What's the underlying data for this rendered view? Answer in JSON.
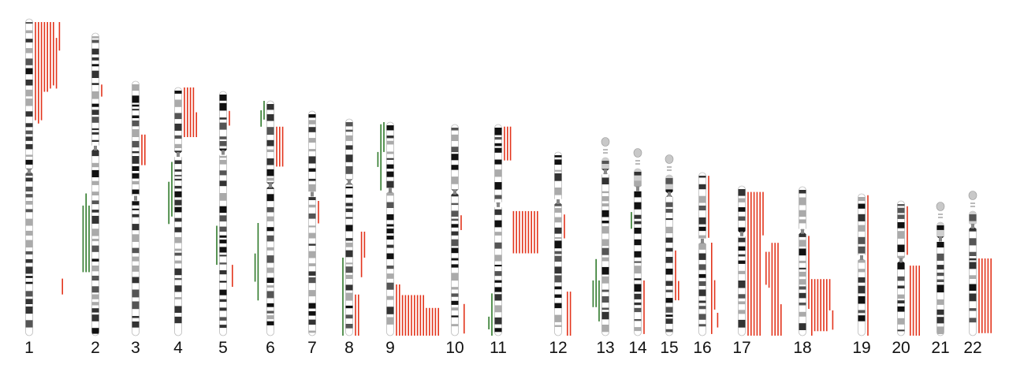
{
  "colors": {
    "gain": "#e3341c",
    "loss": "#2f7a2a",
    "band_dark": "#111111",
    "band_mid": "#555555",
    "band_light": "#aaaaaa"
  },
  "legend_note": "",
  "chromosomes": [
    {
      "label": "1",
      "segments": [
        {
          "type": "gain",
          "start": 0.01,
          "end": 0.32
        },
        {
          "type": "gain",
          "start": 0.01,
          "end": 0.33
        },
        {
          "type": "gain",
          "start": 0.01,
          "end": 0.32
        },
        {
          "type": "gain",
          "start": 0.01,
          "end": 0.23
        },
        {
          "type": "gain",
          "start": 0.01,
          "end": 0.23
        },
        {
          "type": "gain",
          "start": 0.01,
          "end": 0.22
        },
        {
          "type": "gain",
          "start": 0.01,
          "end": 0.21
        },
        {
          "type": "gain",
          "start": 0.06,
          "end": 0.22
        },
        {
          "type": "gain",
          "start": 0.01,
          "end": 0.1
        },
        {
          "type": "gain",
          "start": 0.82,
          "end": 0.87
        }
      ]
    },
    {
      "label": "2",
      "segments": [
        {
          "type": "gain",
          "start": 0.17,
          "end": 0.21
        },
        {
          "type": "loss",
          "start": 0.57,
          "end": 0.79
        },
        {
          "type": "loss",
          "start": 0.53,
          "end": 0.79
        },
        {
          "type": "loss",
          "start": 0.57,
          "end": 0.79
        }
      ]
    },
    {
      "label": "3",
      "segments": [
        {
          "type": "gain",
          "start": 0.21,
          "end": 0.33
        },
        {
          "type": "gain",
          "start": 0.21,
          "end": 0.33
        }
      ]
    },
    {
      "label": "4",
      "segments": [
        {
          "type": "gain",
          "start": 0.0,
          "end": 0.2
        },
        {
          "type": "gain",
          "start": 0.0,
          "end": 0.2
        },
        {
          "type": "gain",
          "start": 0.0,
          "end": 0.2
        },
        {
          "type": "gain",
          "start": 0.0,
          "end": 0.2
        },
        {
          "type": "gain",
          "start": 0.1,
          "end": 0.2
        },
        {
          "type": "loss",
          "start": 0.3,
          "end": 0.52
        },
        {
          "type": "loss",
          "start": 0.38,
          "end": 0.55
        }
      ]
    },
    {
      "label": "5",
      "segments": [
        {
          "type": "gain",
          "start": 0.08,
          "end": 0.14
        },
        {
          "type": "gain",
          "start": 0.71,
          "end": 0.8
        },
        {
          "type": "loss",
          "start": 0.55,
          "end": 0.71
        }
      ]
    },
    {
      "label": "6",
      "segments": [
        {
          "type": "loss",
          "start": 0.0,
          "end": 0.08
        },
        {
          "type": "loss",
          "start": 0.04,
          "end": 0.11
        },
        {
          "type": "gain",
          "start": 0.11,
          "end": 0.28
        },
        {
          "type": "gain",
          "start": 0.11,
          "end": 0.28
        },
        {
          "type": "gain",
          "start": 0.11,
          "end": 0.28
        },
        {
          "type": "loss",
          "start": 0.52,
          "end": 0.85
        },
        {
          "type": "loss",
          "start": 0.65,
          "end": 0.77
        }
      ]
    },
    {
      "label": "7",
      "segments": [
        {
          "type": "gain",
          "start": 0.4,
          "end": 0.5
        }
      ]
    },
    {
      "label": "8",
      "segments": [
        {
          "type": "gain",
          "start": 0.81,
          "end": 1.0
        },
        {
          "type": "gain",
          "start": 0.81,
          "end": 1.0
        },
        {
          "type": "gain",
          "start": 0.52,
          "end": 0.73
        },
        {
          "type": "gain",
          "start": 0.52,
          "end": 0.64
        },
        {
          "type": "loss",
          "start": 0.64,
          "end": 1.0
        }
      ]
    },
    {
      "label": "9",
      "segments": [
        {
          "type": "loss",
          "start": 0.0,
          "end": 0.14
        },
        {
          "type": "loss",
          "start": 0.01,
          "end": 0.32
        },
        {
          "type": "loss",
          "start": 0.14,
          "end": 0.21
        },
        {
          "type": "gain",
          "start": 0.76,
          "end": 1.0
        },
        {
          "type": "gain",
          "start": 0.76,
          "end": 1.0
        },
        {
          "type": "gain",
          "start": 0.81,
          "end": 1.0
        },
        {
          "type": "gain",
          "start": 0.81,
          "end": 1.0
        },
        {
          "type": "gain",
          "start": 0.81,
          "end": 1.0
        },
        {
          "type": "gain",
          "start": 0.81,
          "end": 1.0
        },
        {
          "type": "gain",
          "start": 0.81,
          "end": 1.0
        },
        {
          "type": "gain",
          "start": 0.81,
          "end": 1.0
        },
        {
          "type": "gain",
          "start": 0.81,
          "end": 1.0
        },
        {
          "type": "gain",
          "start": 0.81,
          "end": 1.0
        },
        {
          "type": "gain",
          "start": 0.87,
          "end": 1.0
        },
        {
          "type": "gain",
          "start": 0.87,
          "end": 1.0
        },
        {
          "type": "gain",
          "start": 0.87,
          "end": 1.0
        },
        {
          "type": "gain",
          "start": 0.87,
          "end": 1.0
        },
        {
          "type": "gain",
          "start": 0.87,
          "end": 1.0
        }
      ]
    },
    {
      "label": "10",
      "segments": [
        {
          "type": "gain",
          "start": 0.43,
          "end": 0.5
        },
        {
          "type": "gain",
          "start": 0.85,
          "end": 0.99
        }
      ]
    },
    {
      "label": "11",
      "segments": [
        {
          "type": "gain",
          "start": 0.01,
          "end": 0.17
        },
        {
          "type": "gain",
          "start": 0.01,
          "end": 0.17
        },
        {
          "type": "gain",
          "start": 0.01,
          "end": 0.17
        },
        {
          "type": "gain",
          "start": 0.41,
          "end": 0.61
        },
        {
          "type": "gain",
          "start": 0.41,
          "end": 0.61
        },
        {
          "type": "gain",
          "start": 0.41,
          "end": 0.61
        },
        {
          "type": "gain",
          "start": 0.41,
          "end": 0.61
        },
        {
          "type": "gain",
          "start": 0.41,
          "end": 0.61
        },
        {
          "type": "gain",
          "start": 0.41,
          "end": 0.61
        },
        {
          "type": "gain",
          "start": 0.41,
          "end": 0.61
        },
        {
          "type": "gain",
          "start": 0.41,
          "end": 0.61
        },
        {
          "type": "gain",
          "start": 0.41,
          "end": 0.61
        },
        {
          "type": "loss",
          "start": 0.8,
          "end": 1.0
        },
        {
          "type": "loss",
          "start": 0.91,
          "end": 0.97
        }
      ]
    },
    {
      "label": "12",
      "segments": [
        {
          "type": "gain",
          "start": 0.34,
          "end": 0.47
        },
        {
          "type": "gain",
          "start": 0.76,
          "end": 1.0
        },
        {
          "type": "gain",
          "start": 0.76,
          "end": 1.0
        }
      ]
    },
    {
      "label": "13",
      "segments": [
        {
          "type": "loss",
          "start": 0.69,
          "end": 0.92
        },
        {
          "type": "loss",
          "start": 0.57,
          "end": 0.84
        },
        {
          "type": "loss",
          "start": 0.69,
          "end": 0.84
        }
      ]
    },
    {
      "label": "14",
      "segments": [
        {
          "type": "loss",
          "start": 0.26,
          "end": 0.36
        },
        {
          "type": "gain",
          "start": 0.67,
          "end": 0.99
        }
      ]
    },
    {
      "label": "15",
      "segments": [
        {
          "type": "gain",
          "start": 0.47,
          "end": 0.78
        },
        {
          "type": "gain",
          "start": 0.66,
          "end": 0.78
        }
      ]
    },
    {
      "label": "16",
      "segments": [
        {
          "type": "gain",
          "start": 0.02,
          "end": 0.4
        },
        {
          "type": "gain",
          "start": 0.43,
          "end": 0.99
        },
        {
          "type": "gain",
          "start": 0.66,
          "end": 0.84
        },
        {
          "type": "gain",
          "start": 0.86,
          "end": 0.95
        }
      ]
    },
    {
      "label": "17",
      "segments": [
        {
          "type": "gain",
          "start": 0.04,
          "end": 1.0
        },
        {
          "type": "gain",
          "start": 0.04,
          "end": 1.0
        },
        {
          "type": "gain",
          "start": 0.04,
          "end": 1.0
        },
        {
          "type": "gain",
          "start": 0.04,
          "end": 1.0
        },
        {
          "type": "gain",
          "start": 0.04,
          "end": 1.0
        },
        {
          "type": "gain",
          "start": 0.04,
          "end": 0.33
        },
        {
          "type": "gain",
          "start": 0.44,
          "end": 0.66
        },
        {
          "type": "gain",
          "start": 0.44,
          "end": 0.68
        },
        {
          "type": "gain",
          "start": 0.38,
          "end": 1.0
        },
        {
          "type": "gain",
          "start": 0.38,
          "end": 1.0
        },
        {
          "type": "gain",
          "start": 0.38,
          "end": 1.0
        },
        {
          "type": "gain",
          "start": 0.79,
          "end": 1.0
        }
      ]
    },
    {
      "label": "18",
      "segments": [
        {
          "type": "gain",
          "start": 0.33,
          "end": 0.82
        },
        {
          "type": "gain",
          "start": 0.62,
          "end": 1.0
        },
        {
          "type": "gain",
          "start": 0.62,
          "end": 0.97
        },
        {
          "type": "gain",
          "start": 0.62,
          "end": 0.97
        },
        {
          "type": "gain",
          "start": 0.62,
          "end": 0.97
        },
        {
          "type": "gain",
          "start": 0.62,
          "end": 0.97
        },
        {
          "type": "gain",
          "start": 0.62,
          "end": 0.97
        },
        {
          "type": "gain",
          "start": 0.62,
          "end": 0.83
        },
        {
          "type": "gain",
          "start": 0.83,
          "end": 0.96
        }
      ]
    },
    {
      "label": "19",
      "segments": [
        {
          "type": "gain",
          "start": 0.01,
          "end": 1.0
        }
      ]
    },
    {
      "label": "20",
      "segments": [
        {
          "type": "gain",
          "start": 0.04,
          "end": 0.4
        },
        {
          "type": "gain",
          "start": 0.48,
          "end": 1.0
        },
        {
          "type": "gain",
          "start": 0.48,
          "end": 1.0
        },
        {
          "type": "gain",
          "start": 0.48,
          "end": 1.0
        },
        {
          "type": "gain",
          "start": 0.48,
          "end": 1.0
        }
      ]
    },
    {
      "label": "21",
      "segments": []
    },
    {
      "label": "22",
      "segments": [
        {
          "type": "gain",
          "start": 0.38,
          "end": 0.98
        },
        {
          "type": "gain",
          "start": 0.38,
          "end": 0.98
        },
        {
          "type": "gain",
          "start": 0.38,
          "end": 0.98
        },
        {
          "type": "gain",
          "start": 0.38,
          "end": 0.98
        },
        {
          "type": "gain",
          "start": 0.38,
          "end": 0.98
        }
      ]
    }
  ]
}
